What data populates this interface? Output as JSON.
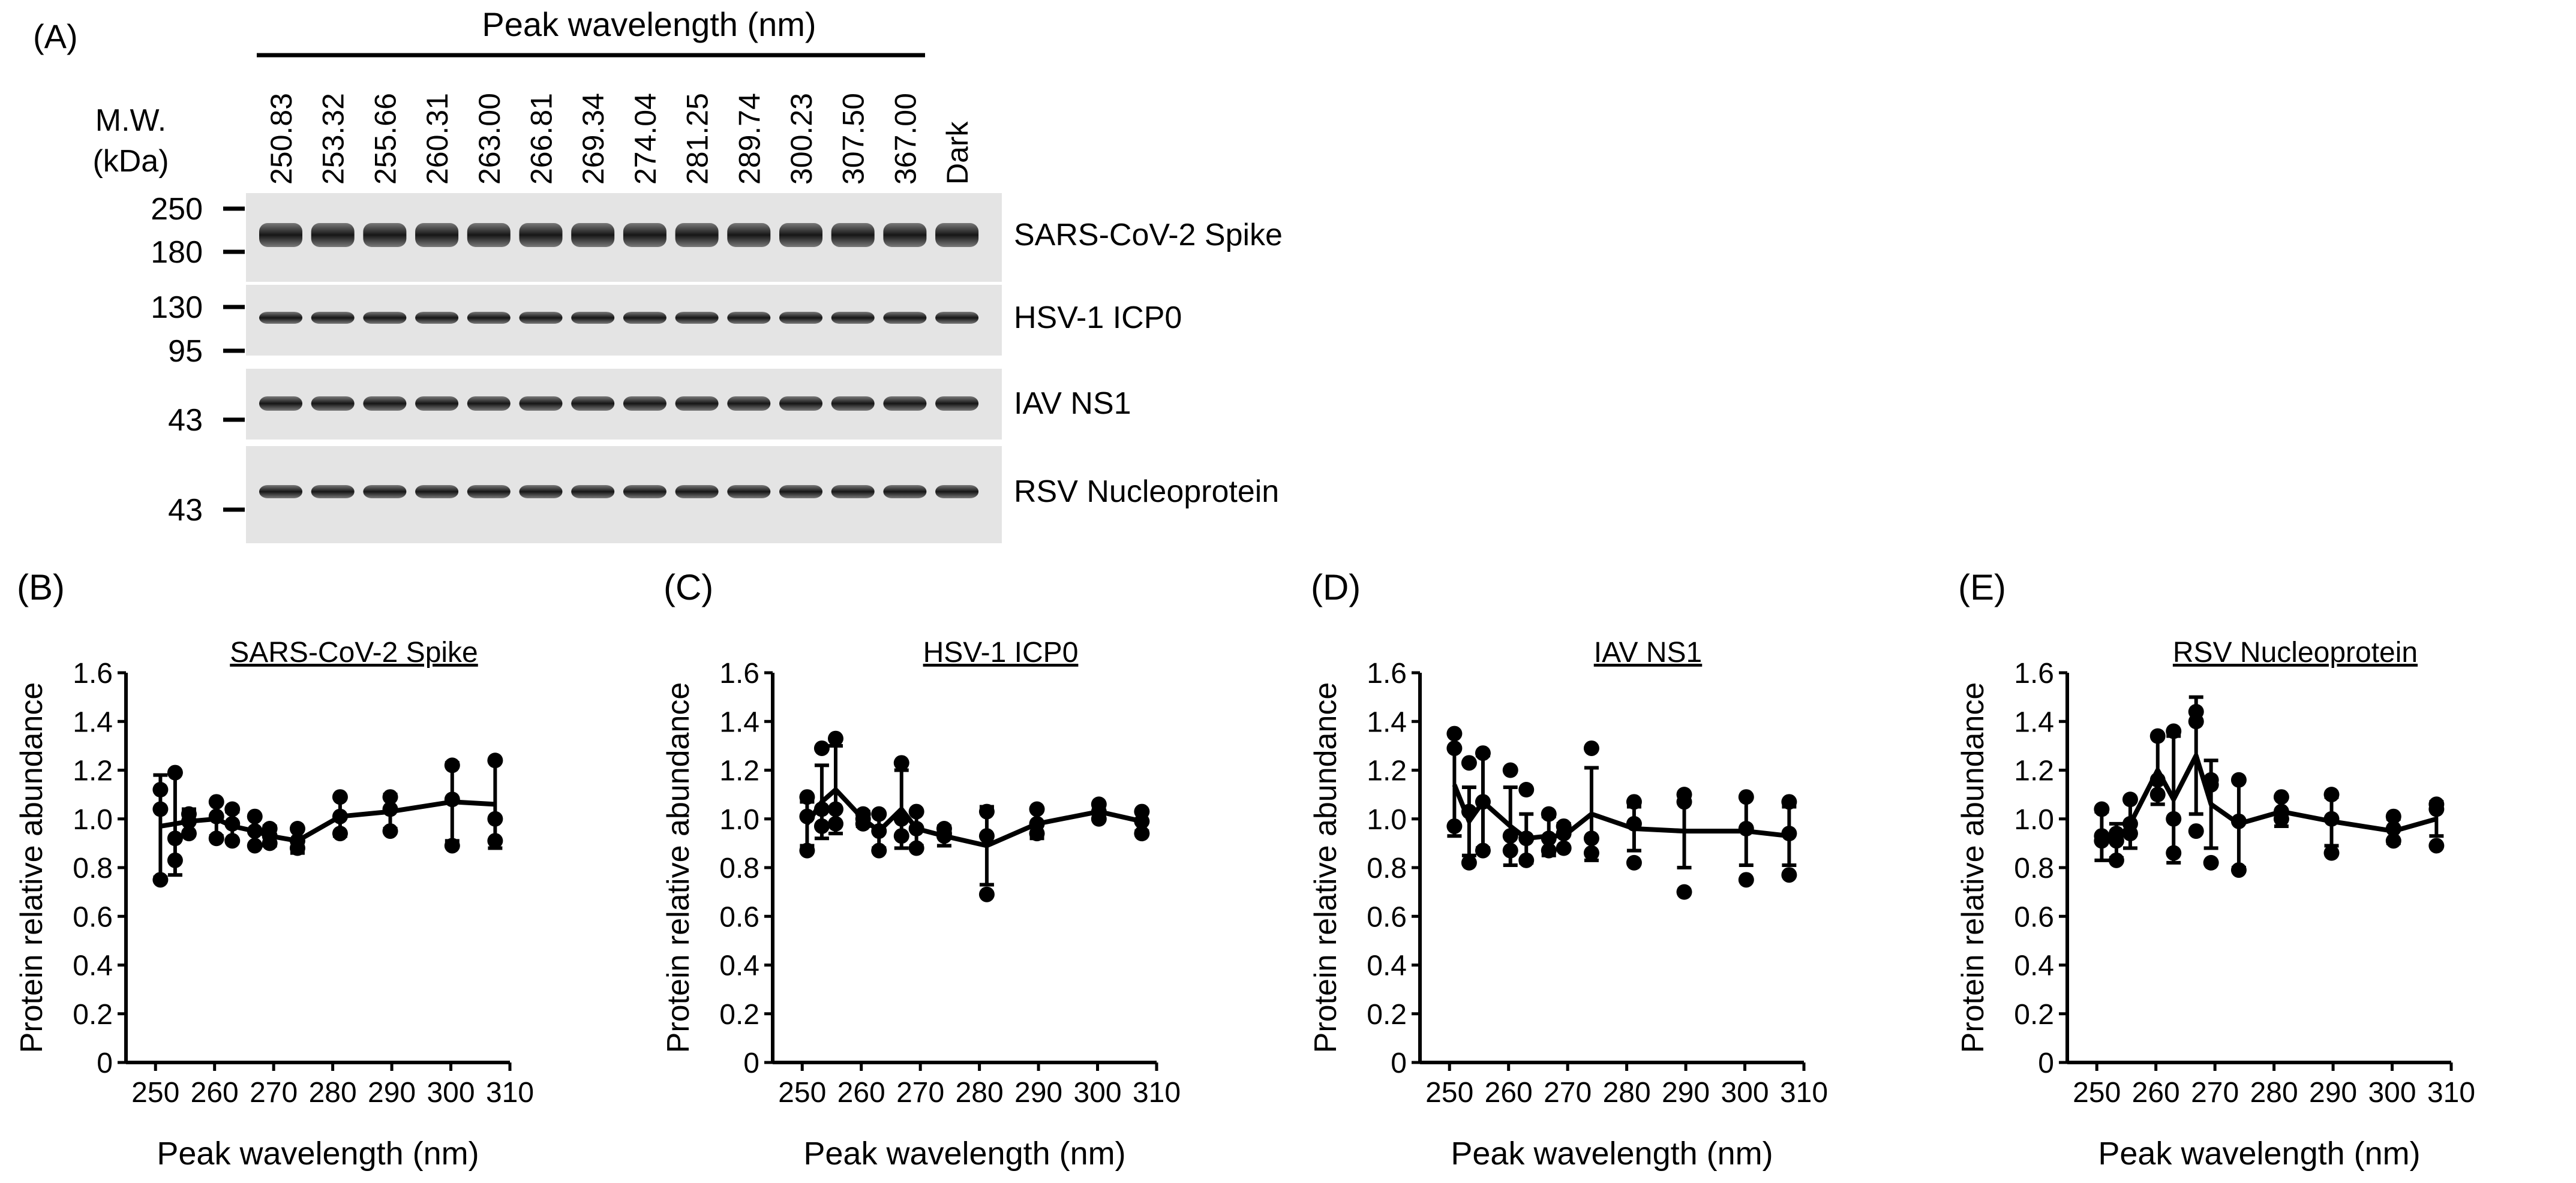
{
  "panel_a": {
    "label": "(A)",
    "header": "Peak wavelength (nm)",
    "mw_title_1": "M.W.",
    "mw_title_2": "(kDa)",
    "lanes": [
      "250.83",
      "253.32",
      "255.66",
      "260.31",
      "263.00",
      "266.81",
      "269.34",
      "274.04",
      "281.25",
      "289.74",
      "300.23",
      "307.50",
      "367.00",
      "Dark"
    ],
    "blots": [
      {
        "name": "SARS-CoV-2 Spike",
        "markers": [
          "250",
          "180"
        ]
      },
      {
        "name": "HSV-1 ICP0",
        "markers": [
          "130",
          "95"
        ]
      },
      {
        "name": "IAV NS1",
        "markers": [
          "43"
        ]
      },
      {
        "name": "RSV Nucleoprotein",
        "markers": [
          "43"
        ]
      }
    ]
  },
  "chart_data": [
    {
      "panel": "(B)",
      "type": "line",
      "title": "SARS-CoV-2 Spike",
      "xlabel": "Peak wavelength (nm)",
      "ylabel": "Protein relative abundance",
      "xlim": [
        245,
        310
      ],
      "ylim": [
        0,
        1.6
      ],
      "xticks": [
        250,
        260,
        270,
        280,
        290,
        300,
        310
      ],
      "yticks": [
        0,
        0.2,
        0.4,
        0.6,
        0.8,
        1.0,
        1.2,
        1.4,
        1.6
      ],
      "ytick_labels": [
        "0",
        "0.2",
        "0.4",
        "0.6",
        "0.8",
        "1.0",
        "1.2",
        "1.4",
        "1.6"
      ],
      "x": [
        250.83,
        253.32,
        255.66,
        260.31,
        263.0,
        266.81,
        269.34,
        274.04,
        281.25,
        289.74,
        300.23,
        307.5
      ],
      "mean": [
        0.97,
        0.98,
        0.99,
        1.0,
        0.97,
        0.95,
        0.93,
        0.91,
        1.01,
        1.03,
        1.07,
        1.06
      ],
      "err": [
        0.21,
        0.21,
        0.05,
        0.07,
        0.06,
        0.06,
        0.04,
        0.05,
        0.08,
        0.07,
        0.16,
        0.18
      ],
      "points": [
        [
          0.75,
          1.04,
          1.12
        ],
        [
          0.83,
          0.92,
          1.19
        ],
        [
          0.94,
          0.99,
          1.02
        ],
        [
          0.92,
          1.01,
          1.07
        ],
        [
          0.91,
          0.98,
          1.04
        ],
        [
          0.89,
          0.95,
          1.01
        ],
        [
          0.9,
          0.93,
          0.96
        ],
        [
          0.88,
          0.91,
          0.96
        ],
        [
          0.94,
          1.01,
          1.09
        ],
        [
          0.95,
          1.04,
          1.09
        ],
        [
          0.89,
          1.08,
          1.22
        ],
        [
          0.91,
          1.0,
          1.24
        ]
      ]
    },
    {
      "panel": "(C)",
      "type": "line",
      "title": "HSV-1 ICP0",
      "xlabel": "Peak wavelength (nm)",
      "ylabel": "Protein relative abundance",
      "xlim": [
        245,
        310
      ],
      "ylim": [
        0,
        1.6
      ],
      "xticks": [
        250,
        260,
        270,
        280,
        290,
        300,
        310
      ],
      "yticks": [
        0,
        0.2,
        0.4,
        0.6,
        0.8,
        1.0,
        1.2,
        1.4,
        1.6
      ],
      "ytick_labels": [
        "0",
        "0.2",
        "0.4",
        "0.6",
        "0.8",
        "1.0",
        "1.2",
        "1.4",
        "1.6"
      ],
      "x": [
        250.83,
        253.32,
        255.66,
        260.31,
        263.0,
        266.81,
        269.34,
        274.04,
        281.25,
        289.74,
        300.23,
        307.5
      ],
      "mean": [
        0.98,
        1.07,
        1.12,
        1.0,
        0.95,
        1.04,
        0.96,
        0.93,
        0.89,
        0.98,
        1.03,
        0.99
      ],
      "err": [
        0.09,
        0.15,
        0.18,
        0.03,
        0.07,
        0.16,
        0.07,
        0.04,
        0.16,
        0.06,
        0.03,
        0.04
      ],
      "points": [
        [
          0.87,
          1.01,
          1.09
        ],
        [
          0.97,
          1.04,
          1.29
        ],
        [
          0.98,
          1.04,
          1.33
        ],
        [
          0.98,
          1.0,
          1.02
        ],
        [
          0.87,
          0.95,
          1.02
        ],
        [
          0.93,
          1.0,
          1.23
        ],
        [
          0.88,
          0.96,
          1.03
        ],
        [
          0.93,
          0.94,
          0.96
        ],
        [
          0.69,
          0.93,
          1.03
        ],
        [
          0.94,
          0.98,
          1.04
        ],
        [
          1.0,
          1.03,
          1.06
        ],
        [
          0.94,
          0.99,
          1.03
        ]
      ]
    },
    {
      "panel": "(D)",
      "type": "line",
      "title": "IAV NS1",
      "xlabel": "Peak wavelength (nm)",
      "ylabel": "Protein relative abundance",
      "xlim": [
        245,
        310
      ],
      "ylim": [
        0,
        1.6
      ],
      "xticks": [
        250,
        260,
        270,
        280,
        290,
        300,
        310
      ],
      "yticks": [
        0,
        0.2,
        0.4,
        0.6,
        0.8,
        1.0,
        1.2,
        1.4,
        1.6
      ],
      "ytick_labels": [
        "0",
        "0.2",
        "0.4",
        "0.6",
        "0.8",
        "1.0",
        "1.2",
        "1.4",
        "1.6"
      ],
      "x": [
        250.83,
        253.32,
        255.66,
        260.31,
        263.0,
        266.81,
        269.34,
        274.04,
        281.25,
        289.74,
        300.23,
        307.5
      ],
      "mean": [
        1.14,
        0.99,
        1.07,
        0.97,
        0.92,
        0.93,
        0.93,
        1.02,
        0.96,
        0.95,
        0.95,
        0.93
      ],
      "err": [
        0.21,
        0.14,
        0.19,
        0.16,
        0.1,
        0.08,
        0.05,
        0.19,
        0.09,
        0.15,
        0.14,
        0.12
      ],
      "points": [
        [
          0.97,
          1.29,
          1.35
        ],
        [
          0.82,
          1.03,
          1.23
        ],
        [
          0.87,
          1.07,
          1.27
        ],
        [
          0.87,
          0.93,
          1.2
        ],
        [
          0.83,
          0.92,
          1.12
        ],
        [
          0.87,
          0.92,
          1.02
        ],
        [
          0.88,
          0.94,
          0.97
        ],
        [
          0.86,
          0.92,
          1.29
        ],
        [
          0.82,
          0.98,
          1.07
        ],
        [
          0.7,
          1.07,
          1.1
        ],
        [
          0.75,
          0.96,
          1.09
        ],
        [
          0.77,
          0.94,
          1.07
        ]
      ]
    },
    {
      "panel": "(E)",
      "type": "line",
      "title": "RSV Nucleoprotein",
      "xlabel": "Peak wavelength (nm)",
      "ylabel": "Protein relative abundance",
      "xlim": [
        245,
        310
      ],
      "ylim": [
        0,
        1.6
      ],
      "xticks": [
        250,
        260,
        270,
        280,
        290,
        300,
        310
      ],
      "yticks": [
        0,
        0.2,
        0.4,
        0.6,
        0.8,
        1.0,
        1.2,
        1.4,
        1.6
      ],
      "ytick_labels": [
        "0",
        "0.2",
        "0.4",
        "0.6",
        "0.8",
        "1.0",
        "1.2",
        "1.4",
        "1.6"
      ],
      "x": [
        250.83,
        253.32,
        255.66,
        260.31,
        263.0,
        266.81,
        269.34,
        274.04,
        281.25,
        289.74,
        300.23,
        307.5
      ],
      "mean": [
        0.93,
        0.91,
        0.98,
        1.2,
        1.08,
        1.26,
        1.06,
        0.98,
        1.03,
        0.99,
        0.95,
        1.0
      ],
      "err": [
        0.1,
        0.07,
        0.1,
        0.14,
        0.26,
        0.24,
        0.18,
        0.18,
        0.06,
        0.1,
        0.05,
        0.07
      ],
      "points": [
        [
          0.91,
          0.93,
          1.04
        ],
        [
          0.83,
          0.91,
          0.94
        ],
        [
          0.94,
          0.98,
          1.08
        ],
        [
          1.1,
          1.16,
          1.34
        ],
        [
          0.86,
          1.0,
          1.36
        ],
        [
          0.95,
          1.4,
          1.44
        ],
        [
          0.82,
          1.14,
          1.16
        ],
        [
          0.79,
          0.99,
          1.16
        ],
        [
          1.0,
          1.03,
          1.09
        ],
        [
          0.86,
          1.0,
          1.1
        ],
        [
          0.91,
          0.96,
          1.01
        ],
        [
          0.89,
          1.04,
          1.06
        ]
      ]
    }
  ]
}
